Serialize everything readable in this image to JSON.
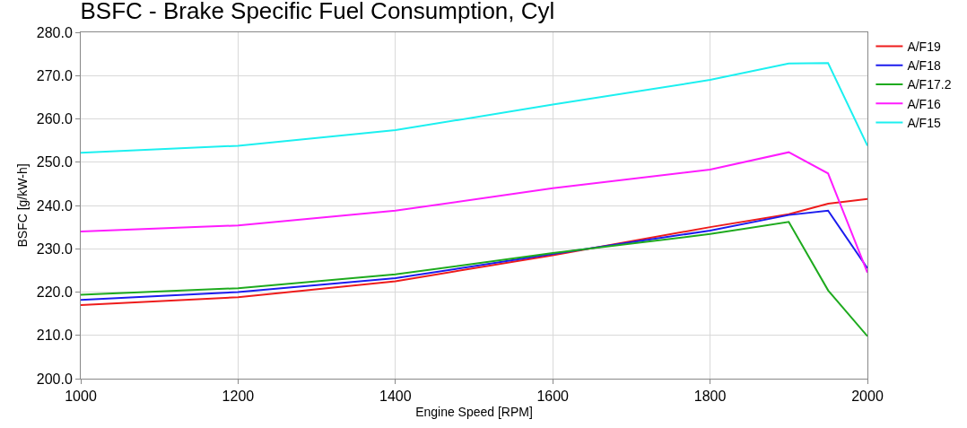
{
  "chart_data": {
    "type": "line",
    "title": "BSFC - Brake Specific Fuel Consumption, Cyl",
    "xlabel": "Engine Speed [RPM]",
    "ylabel": "BSFC [g/kW-h]",
    "x": [
      1000,
      1200,
      1400,
      1600,
      1800,
      1900,
      1950,
      2000
    ],
    "series": [
      {
        "name": "A/F19",
        "color": "#ee1c1c",
        "values": [
          217.0,
          218.8,
          222.5,
          228.5,
          235.0,
          238.0,
          240.4,
          241.5
        ]
      },
      {
        "name": "A/F18",
        "color": "#1c1cee",
        "values": [
          218.2,
          220.0,
          223.2,
          228.8,
          234.2,
          237.8,
          238.8,
          225.5
        ]
      },
      {
        "name": "A/F17.2",
        "color": "#1eaa1e",
        "values": [
          219.4,
          220.9,
          224.1,
          229.0,
          233.4,
          236.2,
          220.4,
          209.8
        ]
      },
      {
        "name": "A/F16",
        "color": "#ff1cff",
        "values": [
          234.0,
          235.4,
          238.8,
          244.0,
          248.3,
          252.3,
          247.4,
          224.5
        ]
      },
      {
        "name": "A/F15",
        "color": "#1cf0f0",
        "values": [
          252.2,
          253.8,
          257.4,
          263.3,
          269.0,
          272.8,
          272.9,
          253.8
        ]
      }
    ],
    "xlim": [
      1000,
      2000
    ],
    "xticks": [
      1000,
      1200,
      1400,
      1600,
      1800,
      2000
    ],
    "ylim": [
      200,
      280
    ],
    "yticks": [
      {
        "value": 200,
        "label": "200.0"
      },
      {
        "value": 210,
        "label": "210.0"
      },
      {
        "value": 220,
        "label": "220.0"
      },
      {
        "value": 230,
        "label": "230.0"
      },
      {
        "value": 240,
        "label": "240.0"
      },
      {
        "value": 250,
        "label": "250.0"
      },
      {
        "value": 260,
        "label": "260.0"
      },
      {
        "value": 270,
        "label": "270.0"
      },
      {
        "value": 280,
        "label": "280.0"
      }
    ],
    "grid": true,
    "legend": "top right",
    "marker": "none",
    "line_style": "solid"
  }
}
